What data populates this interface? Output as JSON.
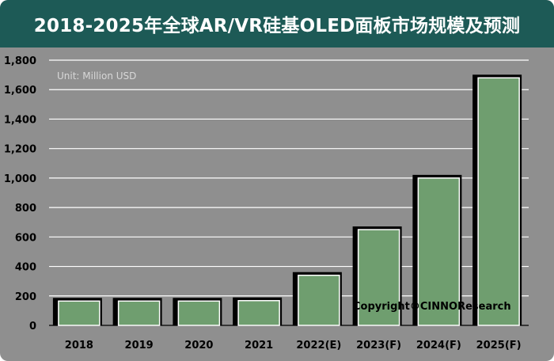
{
  "title": "2018-2025年全球AR/VR硅基OLED面板市场规模及预测",
  "unit_label": "Unit: Million USD",
  "copyright": "Copyright©CINNOResearch",
  "colors": {
    "title_bg": "#1d5a56",
    "panel_bg": "#8f8f8f",
    "bar_fill": "#6f9e6f",
    "bar_shadow": "#000000",
    "grid": "#ffffff"
  },
  "chart_data": {
    "type": "bar",
    "title": "2018-2025年全球AR/VR硅基OLED面板市场规模及预测",
    "categories": [
      "2018",
      "2019",
      "2020",
      "2021",
      "2022(E)",
      "2023(F)",
      "2024(F)",
      "2025(F)"
    ],
    "values": [
      165,
      165,
      165,
      168,
      340,
      650,
      1000,
      1680
    ],
    "ylim": [
      0,
      1800
    ],
    "yticks": [
      0,
      200,
      400,
      600,
      800,
      1000,
      1200,
      1400,
      1600,
      1800
    ],
    "ytick_labels": [
      "0",
      "200",
      "400",
      "600",
      "800",
      "1,000",
      "1,200",
      "1,400",
      "1,600",
      "1,800"
    ],
    "xlabel": "",
    "ylabel": "",
    "grid": true,
    "legend": "none"
  }
}
